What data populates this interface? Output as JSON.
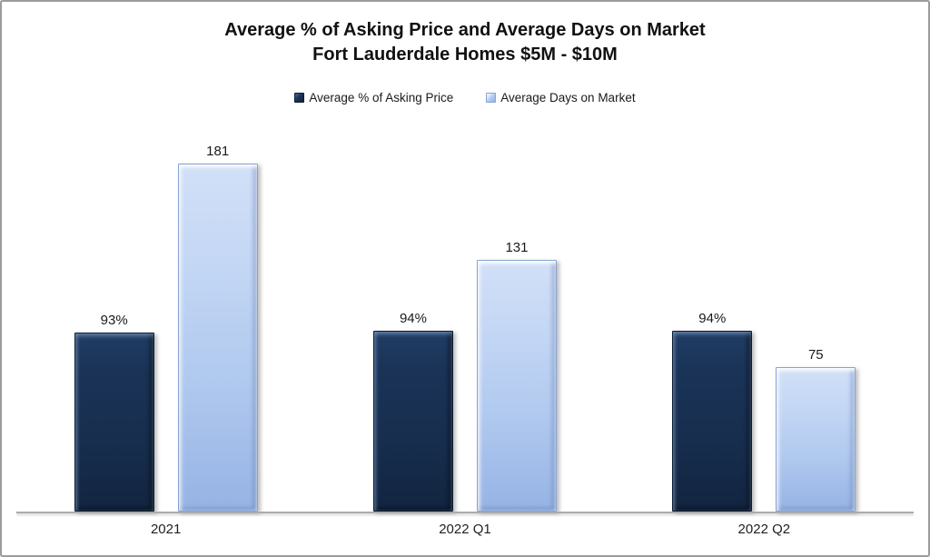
{
  "chart_data": {
    "type": "bar",
    "title": "Average % of Asking Price and Average Days on Market Fort Lauderdale Homes $5M - $10M",
    "title_line1": "Average % of Asking Price and Average Days on Market",
    "title_line2": "Fort Lauderdale Homes $5M - $10M",
    "categories": [
      "2021",
      "2022 Q1",
      "2022 Q2"
    ],
    "series": [
      {
        "name": "Average % of Asking Price",
        "values": [
          93,
          94,
          94
        ],
        "labels": [
          "93%",
          "94%",
          "94%"
        ],
        "color": "#1a3357"
      },
      {
        "name": "Average Days on Market",
        "values": [
          181,
          131,
          75
        ],
        "labels": [
          "181",
          "131",
          "75"
        ],
        "color": "#b0c9ef"
      }
    ],
    "xlabel": "",
    "ylabel": "",
    "ylim": [
      0,
      200
    ],
    "grid": false,
    "y_axis_visible": false,
    "data_labels": true,
    "legend_position": "top"
  },
  "colors": {
    "series1-main": "#1a3357",
    "series1-dark": "#122540",
    "series1-border": "#0c1d33",
    "series2-light": "#d2e0f8",
    "series2-main": "#b0c9ef",
    "series2-dark": "#96b3e4",
    "series2-border": "#87a3d4",
    "axis-line": "#ababab",
    "frame-border": "#9c9c9c",
    "background": "#ffffff",
    "text": "#1a1a1a"
  }
}
